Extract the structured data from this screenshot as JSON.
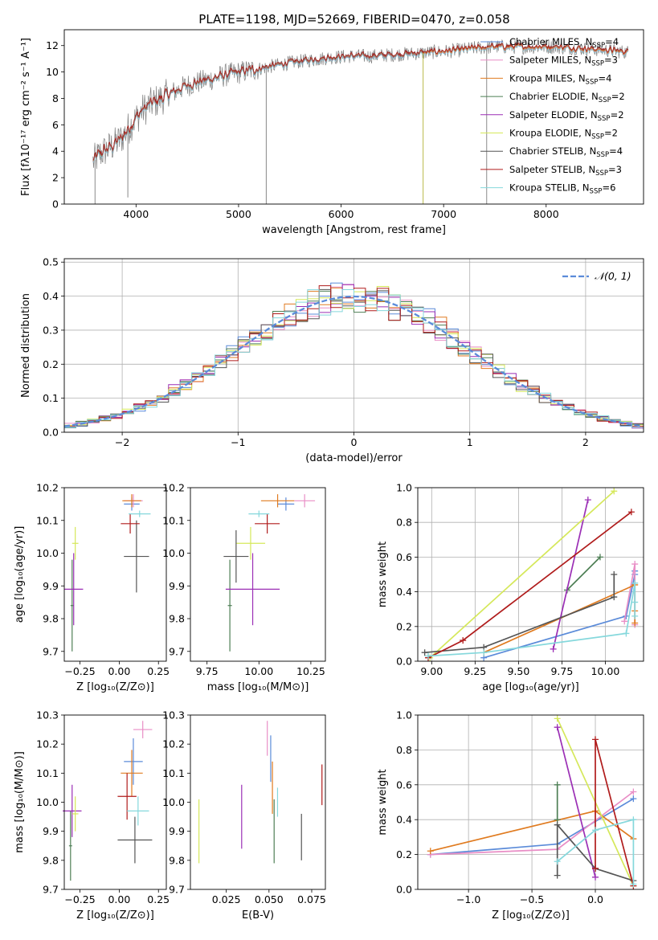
{
  "figure": {
    "title": "PLATE=1198, MJD=52669, FIBERID=0470, z=0.058"
  },
  "colors": {
    "Chabrier MILES": "#5b8bd9",
    "Salpeter MILES": "#e98ec6",
    "Kroupa MILES": "#e07b20",
    "Chabrier ELODIE": "#4e7f55",
    "Salpeter ELODIE": "#9b2fb5",
    "Kroupa ELODIE": "#d5e85a",
    "Chabrier STELIB": "#555555",
    "Salpeter STELIB": "#b01c1c",
    "Kroupa STELIB": "#85d8dc",
    "Data spectrum": "#808080",
    "Normal curve": "#5b8bd9"
  },
  "chart_data": [
    {
      "id": "spectrum",
      "type": "line",
      "xlabel": "wavelength [Angstrom, rest frame]",
      "ylabel": "Flux [fλ10⁻¹⁷ erg cm⁻² s⁻¹ A⁻¹]",
      "xlim": [
        3300,
        8950
      ],
      "ylim": [
        0,
        13.2
      ],
      "xticks": [
        4000,
        5000,
        6000,
        7000,
        8000
      ],
      "yticks": [
        0,
        2,
        4,
        6,
        8,
        10,
        12
      ],
      "legend": "top-right",
      "legend_entries": [
        {
          "label": "Chabrier MILES, N",
          "sub": "SSP",
          "tail": "=4",
          "color": "#5b8bd9"
        },
        {
          "label": "Salpeter MILES, N",
          "sub": "SSP",
          "tail": "=3",
          "color": "#e98ec6"
        },
        {
          "label": "Kroupa MILES, N",
          "sub": "SSP",
          "tail": "=4",
          "color": "#e07b20"
        },
        {
          "label": "Chabrier ELODIE, N",
          "sub": "SSP",
          "tail": "=2",
          "color": "#4e7f55"
        },
        {
          "label": "Salpeter ELODIE, N",
          "sub": "SSP",
          "tail": "=2",
          "color": "#9b2fb5"
        },
        {
          "label": "Kroupa ELODIE, N",
          "sub": "SSP",
          "tail": "=2",
          "color": "#d5e85a"
        },
        {
          "label": "Chabrier STELIB, N",
          "sub": "SSP",
          "tail": "=4",
          "color": "#555555"
        },
        {
          "label": "Salpeter STELIB, N",
          "sub": "SSP",
          "tail": "=3",
          "color": "#b01c1c"
        },
        {
          "label": "Kroupa STELIB, N",
          "sub": "SSP",
          "tail": "=6",
          "color": "#85d8dc"
        }
      ],
      "continuum": {
        "x": [
          3580,
          3650,
          3750,
          3850,
          3950,
          4050,
          4150,
          4300,
          4500,
          4700,
          4900,
          5100,
          5300,
          5500,
          5700,
          5900,
          6100,
          6300,
          6500,
          6700,
          6900,
          7100,
          7300,
          7500,
          7700,
          7900,
          8100,
          8300,
          8500,
          8800
        ],
        "y": [
          3.2,
          3.8,
          4.3,
          4.9,
          6.0,
          7.0,
          7.6,
          8.2,
          9.0,
          9.4,
          9.8,
          10.1,
          10.4,
          10.7,
          10.9,
          11.1,
          11.2,
          11.2,
          11.3,
          11.4,
          11.5,
          11.6,
          11.8,
          11.9,
          11.9,
          11.9,
          11.9,
          11.8,
          11.7,
          11.5
        ]
      },
      "sharp_drops": [
        {
          "x": 3600,
          "y": 0
        },
        {
          "x": 3920,
          "y": 0.5
        },
        {
          "x": 5270,
          "y": 0
        },
        {
          "x": 6800,
          "y": 0
        },
        {
          "x": 7420,
          "y": 0
        }
      ]
    },
    {
      "id": "residuals",
      "type": "bar",
      "xlabel": "(data-model)/error",
      "ylabel": "Normed distribution",
      "xlim": [
        -2.5,
        2.5
      ],
      "ylim": [
        0,
        0.51
      ],
      "xticks": [
        -2,
        -1,
        0,
        1,
        2
      ],
      "xtick_labels": [
        "−2",
        "−1",
        "0",
        "1",
        "2"
      ],
      "yticks": [
        0.0,
        0.1,
        0.2,
        0.3,
        0.4,
        0.5
      ],
      "ytick_labels": [
        "0.0",
        "0.1",
        "0.2",
        "0.3",
        "0.4",
        "0.5"
      ],
      "grid": true,
      "legend": "top-right",
      "legend_label": "𝒩(0, 1)",
      "bin_width": 0.1,
      "normal": {
        "mu": 0,
        "sigma": 1
      }
    },
    {
      "id": "z-age",
      "type": "scatter",
      "xlabel": "Z [log₁₀(Z/Z⊙)]",
      "ylabel": "age  [log₁₀(age/yr)]",
      "xlim": [
        -0.35,
        0.3
      ],
      "ylim": [
        9.67,
        10.2
      ],
      "xticks": [
        -0.25,
        0.0,
        0.25
      ],
      "xtick_labels": [
        "−0.25",
        "0.00",
        "0.25"
      ],
      "yticks": [
        9.7,
        9.8,
        9.9,
        10.0,
        10.1,
        10.2
      ],
      "ytick_labels": [
        "9.7",
        "9.8",
        "9.9",
        "10.0",
        "10.1",
        "10.2"
      ],
      "points": [
        {
          "s": "Chabrier MILES",
          "x": 0.08,
          "y": 10.15,
          "xe": 0.05,
          "ye": 0.02
        },
        {
          "s": "Salpeter MILES",
          "x": 0.09,
          "y": 10.16,
          "xe": 0.06,
          "ye": 0.02
        },
        {
          "s": "Kroupa MILES",
          "x": 0.08,
          "y": 10.16,
          "xe": 0.06,
          "ye": 0.02
        },
        {
          "s": "Chabrier ELODIE",
          "x": -0.3,
          "y": 9.84,
          "xe": 0.01,
          "ye": 0.14
        },
        {
          "s": "Salpeter ELODIE",
          "x": -0.29,
          "y": 9.89,
          "xe": 0.06,
          "ye": 0.11
        },
        {
          "s": "Kroupa ELODIE",
          "x": -0.28,
          "y": 10.03,
          "xe": 0.02,
          "ye": 0.05
        },
        {
          "s": "Chabrier STELIB",
          "x": 0.11,
          "y": 9.99,
          "xe": 0.08,
          "ye": 0.11
        },
        {
          "s": "Salpeter STELIB",
          "x": 0.07,
          "y": 10.09,
          "xe": 0.06,
          "ye": 0.03
        },
        {
          "s": "Kroupa STELIB",
          "x": 0.13,
          "y": 10.12,
          "xe": 0.07,
          "ye": 0.01
        }
      ]
    },
    {
      "id": "mass-age",
      "type": "scatter",
      "xlabel": "mass [log₁₀(M/M⊙)]",
      "ylabel": "",
      "xlim": [
        9.67,
        10.32
      ],
      "ylim": [
        9.67,
        10.2
      ],
      "xticks": [
        9.75,
        10.0,
        10.25
      ],
      "xtick_labels": [
        "9.75",
        "10.00",
        "10.25"
      ],
      "yticks": [
        9.7,
        9.8,
        9.9,
        10.0,
        10.1,
        10.2
      ],
      "ytick_labels": [
        "9.7",
        "9.8",
        "9.9",
        "10.0",
        "10.1",
        "10.2"
      ],
      "points": [
        {
          "s": "Chabrier MILES",
          "x": 10.13,
          "y": 10.15,
          "xe": 0.04,
          "ye": 0.02
        },
        {
          "s": "Salpeter MILES",
          "x": 10.22,
          "y": 10.16,
          "xe": 0.05,
          "ye": 0.02
        },
        {
          "s": "Kroupa MILES",
          "x": 10.09,
          "y": 10.16,
          "xe": 0.08,
          "ye": 0.02
        },
        {
          "s": "Chabrier ELODIE",
          "x": 9.86,
          "y": 9.84,
          "xe": 0.01,
          "ye": 0.14
        },
        {
          "s": "Salpeter ELODIE",
          "x": 9.97,
          "y": 9.89,
          "xe": 0.13,
          "ye": 0.11
        },
        {
          "s": "Kroupa ELODIE",
          "x": 9.96,
          "y": 10.03,
          "xe": 0.07,
          "ye": 0.05
        },
        {
          "s": "Chabrier STELIB",
          "x": 9.89,
          "y": 9.99,
          "xe": 0.06,
          "ye": 0.08
        },
        {
          "s": "Salpeter STELIB",
          "x": 10.04,
          "y": 10.09,
          "xe": 0.06,
          "ye": 0.03
        },
        {
          "s": "Kroupa STELIB",
          "x": 10.0,
          "y": 10.12,
          "xe": 0.05,
          "ye": 0.01
        }
      ]
    },
    {
      "id": "age-massweight",
      "type": "line",
      "xlabel": "age  [log₁₀(age/yr)]",
      "ylabel": "mass weight",
      "xlim": [
        8.92,
        10.22
      ],
      "ylim": [
        0,
        1
      ],
      "xticks": [
        9.0,
        9.25,
        9.5,
        9.75,
        10.0
      ],
      "xtick_labels": [
        "9.00",
        "9.25",
        "9.50",
        "9.75",
        "10.00"
      ],
      "yticks": [
        0,
        0.2,
        0.4,
        0.6,
        0.8,
        1.0
      ],
      "ytick_labels": [
        "0.0",
        "0.2",
        "0.4",
        "0.6",
        "0.8",
        "1.0"
      ],
      "grid": true,
      "series": [
        {
          "s": "Chabrier MILES",
          "x": [
            9.3,
            10.12,
            10.17,
            10.17
          ],
          "y": [
            0.02,
            0.26,
            0.5,
            0.52
          ]
        },
        {
          "s": "Salpeter MILES",
          "x": [
            10.11,
            10.17,
            10.17
          ],
          "y": [
            0.23,
            0.56,
            0.21
          ]
        },
        {
          "s": "Kroupa MILES",
          "x": [
            9.3,
            10.17,
            10.17,
            10.17
          ],
          "y": [
            0.05,
            0.44,
            0.29,
            0.22
          ]
        },
        {
          "s": "Chabrier ELODIE",
          "x": [
            9.78,
            9.97
          ],
          "y": [
            0.41,
            0.6
          ]
        },
        {
          "s": "Salpeter ELODIE",
          "x": [
            9.7,
            9.9
          ],
          "y": [
            0.07,
            0.93
          ]
        },
        {
          "s": "Kroupa ELODIE",
          "x": [
            8.99,
            10.05
          ],
          "y": [
            0.02,
            0.98
          ]
        },
        {
          "s": "Chabrier STELIB",
          "x": [
            8.96,
            9.3,
            10.05,
            10.05
          ],
          "y": [
            0.05,
            0.08,
            0.37,
            0.5
          ]
        },
        {
          "s": "Salpeter STELIB",
          "x": [
            8.98,
            9.18,
            10.15
          ],
          "y": [
            0.02,
            0.12,
            0.86
          ]
        },
        {
          "s": "Kroupa STELIB",
          "x": [
            8.98,
            9.3,
            10.12,
            10.17,
            10.17,
            10.17
          ],
          "y": [
            0.03,
            0.05,
            0.16,
            0.45,
            0.34,
            0.26
          ]
        }
      ]
    },
    {
      "id": "z-mass",
      "type": "scatter",
      "xlabel": "Z [log₁₀(Z/Z⊙)]",
      "ylabel": "mass [log₁₀(M/M⊙)]",
      "xlim": [
        -0.35,
        0.3
      ],
      "ylim": [
        9.7,
        10.3
      ],
      "xticks": [
        -0.25,
        0.0,
        0.25
      ],
      "xtick_labels": [
        "−0.25",
        "0.00",
        "0.25"
      ],
      "yticks": [
        9.7,
        9.8,
        9.9,
        10.0,
        10.1,
        10.2,
        10.3
      ],
      "ytick_labels": [
        "9.7",
        "9.8",
        "9.9",
        "10.0",
        "10.1",
        "10.2",
        "10.3"
      ],
      "points": [
        {
          "s": "Chabrier MILES",
          "x": 0.09,
          "y": 10.14,
          "xe": 0.06,
          "ye": 0.08
        },
        {
          "s": "Salpeter MILES",
          "x": 0.15,
          "y": 10.25,
          "xe": 0.06,
          "ye": 0.03
        },
        {
          "s": "Kroupa MILES",
          "x": 0.08,
          "y": 10.1,
          "xe": 0.07,
          "ye": 0.08
        },
        {
          "s": "Chabrier ELODIE",
          "x": -0.31,
          "y": 9.85,
          "xe": 0.01,
          "ye": 0.12
        },
        {
          "s": "Salpeter ELODIE",
          "x": -0.3,
          "y": 9.97,
          "xe": 0.06,
          "ye": 0.09
        },
        {
          "s": "Kroupa ELODIE",
          "x": -0.28,
          "y": 9.96,
          "xe": 0.02,
          "ye": 0.06
        },
        {
          "s": "Chabrier STELIB",
          "x": 0.1,
          "y": 9.87,
          "xe": 0.11,
          "ye": 0.08
        },
        {
          "s": "Salpeter STELIB",
          "x": 0.05,
          "y": 10.02,
          "xe": 0.06,
          "ye": 0.08
        },
        {
          "s": "Kroupa STELIB",
          "x": 0.12,
          "y": 9.97,
          "xe": 0.07,
          "ye": 0.05
        }
      ]
    },
    {
      "id": "ebv-mass",
      "type": "scatter",
      "xlabel": "E(B-V)",
      "ylabel": "",
      "xlim": [
        0.004,
        0.083
      ],
      "ylim": [
        9.7,
        10.3
      ],
      "xticks": [
        0.025,
        0.05,
        0.075
      ],
      "xtick_labels": [
        "0.025",
        "0.050",
        "0.075"
      ],
      "yticks": [
        9.7,
        9.8,
        9.9,
        10.0,
        10.1,
        10.2,
        10.3
      ],
      "ytick_labels": [
        "9.7",
        "9.8",
        "9.9",
        "10.0",
        "10.1",
        "10.2",
        "10.3"
      ],
      "points": [
        {
          "s": "Chabrier MILES",
          "x": 0.051,
          "y": 10.15,
          "xe": 0,
          "ye": 0.08
        },
        {
          "s": "Salpeter MILES",
          "x": 0.049,
          "y": 10.22,
          "xe": 0,
          "ye": 0.06
        },
        {
          "s": "Kroupa MILES",
          "x": 0.052,
          "y": 10.05,
          "xe": 0,
          "ye": 0.09
        },
        {
          "s": "Chabrier ELODIE",
          "x": 0.053,
          "y": 9.9,
          "xe": 0,
          "ye": 0.11
        },
        {
          "s": "Salpeter ELODIE",
          "x": 0.034,
          "y": 9.95,
          "xe": 0,
          "ye": 0.11
        },
        {
          "s": "Kroupa ELODIE",
          "x": 0.009,
          "y": 9.9,
          "xe": 0,
          "ye": 0.11
        },
        {
          "s": "Chabrier STELIB",
          "x": 0.069,
          "y": 9.88,
          "xe": 0,
          "ye": 0.08
        },
        {
          "s": "Salpeter STELIB",
          "x": 0.081,
          "y": 10.06,
          "xe": 0,
          "ye": 0.07
        },
        {
          "s": "Kroupa STELIB",
          "x": 0.055,
          "y": 10.0,
          "xe": 0,
          "ye": 0.05
        }
      ]
    },
    {
      "id": "z-massweight",
      "type": "line",
      "xlabel": "Z [log₁₀(Z/Z⊙)]",
      "ylabel": "mass weight",
      "xlim": [
        -1.4,
        0.38
      ],
      "ylim": [
        0,
        1
      ],
      "xticks": [
        -1.0,
        -0.5,
        0.0
      ],
      "xtick_labels": [
        "−1.0",
        "−0.5",
        "0.0"
      ],
      "yticks": [
        0,
        0.2,
        0.4,
        0.6,
        0.8,
        1.0
      ],
      "ytick_labels": [
        "0.0",
        "0.2",
        "0.4",
        "0.6",
        "0.8",
        "1.0"
      ],
      "grid": true,
      "series": [
        {
          "s": "Chabrier MILES",
          "x": [
            -1.3,
            -0.3,
            0.3
          ],
          "y": [
            0.2,
            0.26,
            0.52
          ]
        },
        {
          "s": "Salpeter MILES",
          "x": [
            -1.3,
            -0.3,
            0.3
          ],
          "y": [
            0.2,
            0.23,
            0.56
          ]
        },
        {
          "s": "Kroupa MILES",
          "x": [
            -1.3,
            0.0,
            0.3
          ],
          "y": [
            0.22,
            0.45,
            0.29
          ]
        },
        {
          "s": "Chabrier ELODIE",
          "x": [
            -0.3,
            -0.3
          ],
          "y": [
            0.4,
            0.6
          ]
        },
        {
          "s": "Salpeter ELODIE",
          "x": [
            -0.3,
            0.0
          ],
          "y": [
            0.93,
            0.07
          ]
        },
        {
          "s": "Kroupa ELODIE",
          "x": [
            -0.3,
            0.3
          ],
          "y": [
            0.98,
            0.02
          ]
        },
        {
          "s": "Chabrier STELIB",
          "x": [
            -0.3,
            -0.3,
            0.0,
            0.3
          ],
          "y": [
            0.08,
            0.37,
            0.12,
            0.05
          ]
        },
        {
          "s": "Salpeter STELIB",
          "x": [
            0.0,
            0.0,
            0.3
          ],
          "y": [
            0.12,
            0.86,
            0.02
          ]
        },
        {
          "s": "Kroupa STELIB",
          "x": [
            -0.3,
            0.0,
            0.3,
            0.3
          ],
          "y": [
            0.16,
            0.34,
            0.4,
            0.03
          ]
        }
      ]
    }
  ]
}
